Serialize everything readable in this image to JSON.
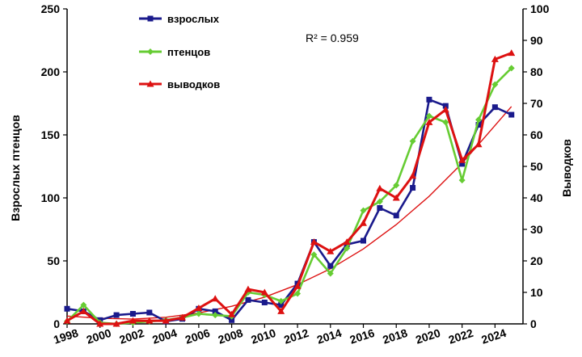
{
  "chart_data": {
    "type": "line",
    "ylabel_left": "Взрослых птенцов",
    "ylabel_right": "Выводков",
    "left_ylim": [
      0,
      250
    ],
    "left_yticks": [
      "0",
      "50",
      "100",
      "150",
      "200",
      "250"
    ],
    "right_ylim": [
      0,
      100
    ],
    "right_yticks": [
      "0",
      "10",
      "20",
      "30",
      "40",
      "50",
      "60",
      "70",
      "80",
      "90",
      "100"
    ],
    "xlim": [
      1998,
      2025.7
    ],
    "x_tick_labels": [
      "1998",
      "2000",
      "2002",
      "2004",
      "2006",
      "2008",
      "2010",
      "2012",
      "2014",
      "2016",
      "2018",
      "2020",
      "2022",
      "2024"
    ],
    "annotation": "R² = 0.959",
    "legend_position": "top-left",
    "series": [
      {
        "name": "взрослых",
        "axis": "left",
        "color": "#1a1a8c",
        "marker": "square",
        "x": [
          1998,
          1999,
          2000,
          2001,
          2002,
          2003,
          2004,
          2005,
          2006,
          2007,
          2008,
          2009,
          2010,
          2011,
          2012,
          2013,
          2014,
          2015,
          2016,
          2017,
          2018,
          2019,
          2020,
          2021,
          2022,
          2023,
          2024,
          2025
        ],
        "values": [
          12,
          10,
          3,
          7,
          8,
          9,
          2,
          4,
          12,
          10,
          3,
          19,
          17,
          15,
          32,
          65,
          46,
          63,
          66,
          92,
          86,
          108,
          178,
          173,
          127,
          158,
          172,
          166
        ]
      },
      {
        "name": "птенцов",
        "axis": "left",
        "color": "#66cc33",
        "marker": "diamond",
        "x": [
          1998,
          1999,
          2000,
          2001,
          2002,
          2003,
          2004,
          2005,
          2006,
          2007,
          2008,
          2009,
          2010,
          2011,
          2012,
          2013,
          2014,
          2015,
          2016,
          2017,
          2018,
          2019,
          2020,
          2021,
          2022,
          2023,
          2024,
          2025
        ],
        "values": [
          2,
          15,
          1,
          0,
          1,
          2,
          3,
          5,
          8,
          7,
          6,
          25,
          23,
          18,
          24,
          55,
          40,
          60,
          90,
          97,
          110,
          145,
          165,
          160,
          114,
          162,
          190,
          203
        ]
      },
      {
        "name": "выводков",
        "axis": "right",
        "color": "#dd1111",
        "marker": "triangle",
        "x": [
          1998,
          1999,
          2000,
          2001,
          2002,
          2003,
          2004,
          2005,
          2006,
          2007,
          2008,
          2009,
          2010,
          2011,
          2012,
          2013,
          2014,
          2015,
          2016,
          2017,
          2018,
          2019,
          2020,
          2021,
          2022,
          2023,
          2024,
          2025
        ],
        "values": [
          1,
          4,
          0,
          0,
          1,
          1,
          1,
          2,
          5,
          8,
          3,
          11,
          10,
          4,
          12,
          26,
          23,
          26,
          32,
          43,
          40,
          47,
          64,
          68,
          52,
          57,
          84,
          86
        ]
      }
    ],
    "trendline": {
      "axis": "right",
      "color": "#dd1111",
      "x": [
        1998,
        2000,
        2002,
        2004,
        2006,
        2008,
        2010,
        2012,
        2014,
        2016,
        2018,
        2020,
        2022,
        2024,
        2025
      ],
      "values": [
        2.5,
        1.8,
        1.5,
        2.1,
        3.5,
        5.6,
        8.5,
        12.5,
        17.5,
        23.8,
        31.5,
        40.5,
        51,
        63,
        69
      ]
    }
  }
}
